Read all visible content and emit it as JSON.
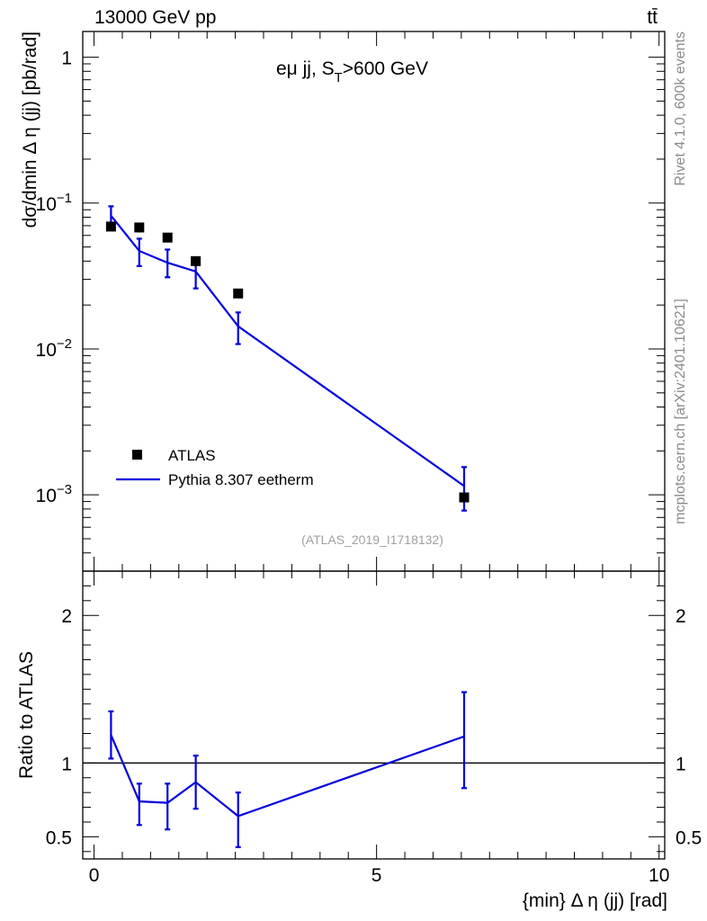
{
  "header": {
    "energy_label": "13000 GeV pp",
    "process_label": "tt̄"
  },
  "side_labels": {
    "rivet": "Rivet 4.1.0,  600k events",
    "mcplots": "mcplots.cern.ch [arXiv:2401.10621]"
  },
  "analysis_tag": "(ATLAS_2019_I1718132)",
  "legend": {
    "data_label": "ATLAS",
    "mc_label": "Pythia 8.307 eetherm"
  },
  "chart_data": [
    {
      "type": "scatter",
      "panel": "main",
      "title_main": "eμ jj, S",
      "title_sub": "T",
      "title_tail": ">600 GeV",
      "ylabel": "dσ/dmin Δ η (jj) [pb/rad]",
      "yscale": "log",
      "ylim": [
        0.0003,
        1.5
      ],
      "y_ticks": [
        {
          "value": 1,
          "label": "1",
          "exp": ""
        },
        {
          "value": 0.1,
          "label": "10",
          "exp": "−1"
        },
        {
          "value": 0.01,
          "label": "10",
          "exp": "−2"
        },
        {
          "value": 0.001,
          "label": "10",
          "exp": "−3"
        }
      ],
      "xlim": [
        -0.2,
        10.1
      ],
      "series": [
        {
          "name": "ATLAS",
          "kind": "data",
          "x": [
            0.3,
            0.8,
            1.3,
            1.8,
            2.55,
            6.55
          ],
          "y": [
            0.069,
            0.068,
            0.058,
            0.04,
            0.024,
            0.00096
          ]
        },
        {
          "name": "Pythia 8.307 eetherm",
          "kind": "mc",
          "x": [
            0.3,
            0.8,
            1.3,
            1.8,
            2.55,
            6.55
          ],
          "y": [
            0.082,
            0.047,
            0.039,
            0.034,
            0.0143,
            0.00115
          ],
          "err_low": [
            0.07,
            0.037,
            0.031,
            0.026,
            0.0108,
            0.00078
          ],
          "err_high": [
            0.095,
            0.057,
            0.048,
            0.042,
            0.0178,
            0.00155
          ]
        }
      ]
    },
    {
      "type": "line",
      "panel": "ratio",
      "ylabel": "Ratio to ATLAS",
      "xlabel": "{min} Δ η (jj) [rad]",
      "ylim": [
        0.35,
        2.3
      ],
      "y_ticks": [
        {
          "value": 2,
          "label": "2"
        },
        {
          "value": 1,
          "label": "1"
        },
        {
          "value": 0.5,
          "label": "0.5"
        }
      ],
      "xlim": [
        -0.2,
        10.1
      ],
      "x_ticks": [
        {
          "value": 0,
          "label": "0"
        },
        {
          "value": 5,
          "label": "5"
        },
        {
          "value": 10,
          "label": "10"
        }
      ],
      "reference": 1,
      "series": [
        {
          "name": "Pythia 8.307 eetherm / ATLAS",
          "x": [
            0.3,
            0.8,
            1.3,
            1.8,
            2.55,
            6.55
          ],
          "y": [
            1.19,
            0.74,
            0.73,
            0.87,
            0.64,
            1.18
          ],
          "err_low": [
            1.03,
            0.58,
            0.55,
            0.69,
            0.43,
            0.83
          ],
          "err_high": [
            1.35,
            0.86,
            0.86,
            1.05,
            0.8,
            1.48
          ]
        }
      ]
    }
  ]
}
